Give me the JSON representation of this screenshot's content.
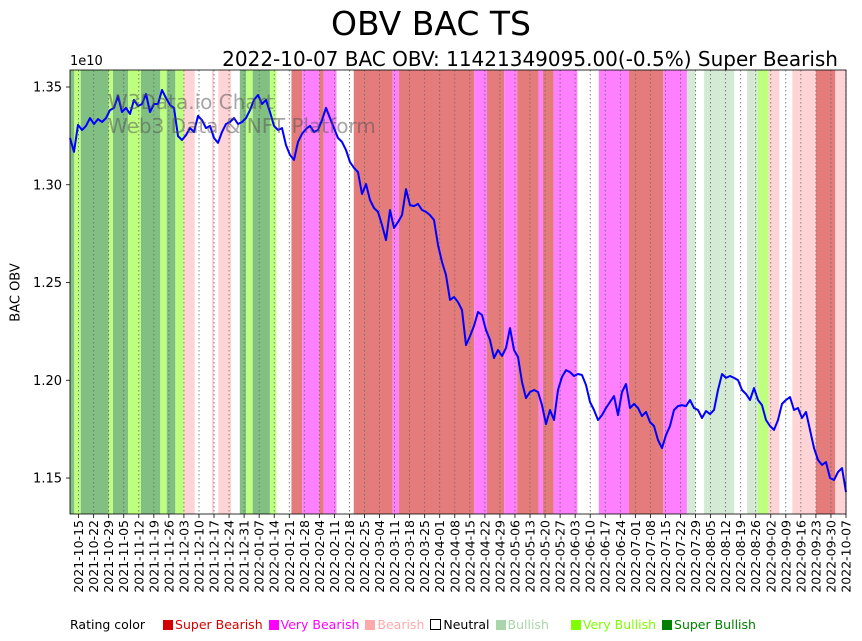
{
  "chart_data": {
    "type": "line",
    "title": "OBV BAC TS",
    "subtitle": "2022-10-07 BAC OBV: 11421349095.00(-0.5%) Super Bearish",
    "ylabel": "BAC OBV",
    "xlabel": "",
    "y_offset_label": "1e10",
    "ylim": [
      1.1316,
      1.3587
    ],
    "yticks": [
      "1.15",
      "1.20",
      "1.25",
      "1.30",
      "1.35"
    ],
    "xlim": [
      "2021-10-11",
      "2022-10-07"
    ],
    "xticks": [
      "2021-10-15",
      "2021-10-22",
      "2021-10-29",
      "2021-11-05",
      "2021-11-12",
      "2021-11-19",
      "2021-11-26",
      "2021-12-03",
      "2021-12-10",
      "2021-12-17",
      "2021-12-24",
      "2021-12-31",
      "2022-01-07",
      "2022-01-14",
      "2022-01-21",
      "2022-01-28",
      "2022-02-04",
      "2022-02-11",
      "2022-02-18",
      "2022-02-25",
      "2022-03-04",
      "2022-03-11",
      "2022-03-18",
      "2022-03-25",
      "2022-04-01",
      "2022-04-08",
      "2022-04-15",
      "2022-04-22",
      "2022-04-29",
      "2022-05-06",
      "2022-05-13",
      "2022-05-20",
      "2022-05-27",
      "2022-06-03",
      "2022-06-10",
      "2022-06-17",
      "2022-06-24",
      "2022-07-01",
      "2022-07-08",
      "2022-07-15",
      "2022-07-22",
      "2022-07-29",
      "2022-08-05",
      "2022-08-12",
      "2022-08-19",
      "2022-08-26",
      "2022-09-02",
      "2022-09-09",
      "2022-09-16",
      "2022-09-23",
      "2022-09-30",
      "2022-10-07"
    ],
    "grid": "x dotted",
    "series": [
      {
        "name": "BAC OBV",
        "color": "#0000ff",
        "x_start": "2021-10-11",
        "x_end": "2022-10-07",
        "values": [
          1.3239,
          1.3168,
          1.3306,
          1.328,
          1.3301,
          1.3341,
          1.3311,
          1.3336,
          1.3321,
          1.3341,
          1.3382,
          1.3393,
          1.3454,
          1.3372,
          1.3393,
          1.3362,
          1.3434,
          1.3403,
          1.3413,
          1.3464,
          1.3372,
          1.3413,
          1.3413,
          1.3485,
          1.3444,
          1.3408,
          1.3393,
          1.3249,
          1.3229,
          1.3254,
          1.329,
          1.327,
          1.3352,
          1.3331,
          1.329,
          1.3301,
          1.3239,
          1.3214,
          1.327,
          1.3311,
          1.3321,
          1.3341,
          1.3311,
          1.3321,
          1.3341,
          1.3382,
          1.3434,
          1.3459,
          1.3413,
          1.3434,
          1.3372,
          1.3301,
          1.328,
          1.329,
          1.3203,
          1.3152,
          1.3127,
          1.3219,
          1.326,
          1.3285,
          1.3301,
          1.327,
          1.328,
          1.3331,
          1.3393,
          1.3341,
          1.329,
          1.3239,
          1.3219,
          1.3178,
          1.3116,
          1.3086,
          1.3065,
          1.2953,
          1.3004,
          1.2922,
          1.2881,
          1.2861,
          1.2794,
          1.2717,
          1.2871,
          1.2779,
          1.2809,
          1.2845,
          1.2978,
          1.2896,
          1.2891,
          1.2902,
          1.2871,
          1.2861,
          1.2845,
          1.282,
          1.2692,
          1.2605,
          1.2538,
          1.2411,
          1.2426,
          1.24,
          1.2359,
          1.218,
          1.2226,
          1.2278,
          1.2349,
          1.2334,
          1.2257,
          1.2206,
          1.2114,
          1.2155,
          1.2124,
          1.2165,
          1.2267,
          1.2155,
          1.2119,
          1.1991,
          1.1909,
          1.194,
          1.195,
          1.194,
          1.1873,
          1.1776,
          1.1848,
          1.1797,
          1.195,
          1.2017,
          1.2052,
          1.2042,
          1.2022,
          1.2032,
          1.2027,
          1.1976,
          1.1889,
          1.1848,
          1.1797,
          1.1822,
          1.1858,
          1.1889,
          1.1919,
          1.1822,
          1.194,
          1.1981,
          1.1858,
          1.1879,
          1.1858,
          1.1817,
          1.1838,
          1.1786,
          1.1766,
          1.1694,
          1.1653,
          1.172,
          1.1766,
          1.1848,
          1.1868,
          1.1873,
          1.1868,
          1.1899,
          1.1858,
          1.1848,
          1.1807,
          1.1843,
          1.1827,
          1.1848,
          1.195,
          1.2032,
          1.2012,
          1.2022,
          1.2012,
          1.2001,
          1.195,
          1.193,
          1.1899,
          1.196,
          1.1899,
          1.1873,
          1.1797,
          1.1766,
          1.1746,
          1.1797,
          1.1879,
          1.1899,
          1.1914,
          1.1848,
          1.1858,
          1.1807,
          1.1838,
          1.1746,
          1.1653,
          1.1592,
          1.1567,
          1.1582,
          1.15,
          1.149,
          1.1531,
          1.1551,
          1.1428
        ]
      }
    ],
    "rating_bands": [
      [
        "2021-10-11",
        "2021-10-13",
        "super_bullish"
      ],
      [
        "2021-10-13",
        "2021-10-16",
        "very_bullish"
      ],
      [
        "2021-10-16",
        "2021-10-29",
        "super_bullish"
      ],
      [
        "2021-10-29",
        "2021-10-31",
        "very_bullish"
      ],
      [
        "2021-10-31",
        "2021-11-07",
        "super_bullish"
      ],
      [
        "2021-11-07",
        "2021-11-13",
        "very_bullish"
      ],
      [
        "2021-11-13",
        "2021-11-22",
        "super_bullish"
      ],
      [
        "2021-11-22",
        "2021-11-25",
        "very_bullish"
      ],
      [
        "2021-11-25",
        "2021-11-29",
        "super_bullish"
      ],
      [
        "2021-11-29",
        "2021-12-03",
        "very_bullish"
      ],
      [
        "2021-12-03",
        "2021-12-08",
        "bearish"
      ],
      [
        "2021-12-16",
        "2021-12-17",
        "bearish"
      ],
      [
        "2021-12-19",
        "2021-12-25",
        "bearish"
      ],
      [
        "2021-12-29",
        "2022-01-01",
        "super_bullish"
      ],
      [
        "2022-01-01",
        "2022-01-04",
        "very_bullish"
      ],
      [
        "2022-01-04",
        "2022-01-12",
        "super_bullish"
      ],
      [
        "2022-01-12",
        "2022-01-15",
        "very_bullish"
      ],
      [
        "2022-01-22",
        "2022-01-27",
        "super_bearish"
      ],
      [
        "2022-01-27",
        "2022-02-04",
        "very_bearish"
      ],
      [
        "2022-02-04",
        "2022-02-06",
        "super_bearish"
      ],
      [
        "2022-02-06",
        "2022-02-12",
        "very_bearish"
      ],
      [
        "2022-02-20",
        "2022-03-10",
        "super_bearish"
      ],
      [
        "2022-03-10",
        "2022-03-13",
        "very_bearish"
      ],
      [
        "2022-03-13",
        "2022-04-17",
        "super_bearish"
      ],
      [
        "2022-04-17",
        "2022-04-23",
        "very_bearish"
      ],
      [
        "2022-04-23",
        "2022-05-01",
        "super_bearish"
      ],
      [
        "2022-05-01",
        "2022-05-07",
        "very_bearish"
      ],
      [
        "2022-05-07",
        "2022-05-17",
        "super_bearish"
      ],
      [
        "2022-05-17",
        "2022-05-19",
        "very_bearish"
      ],
      [
        "2022-05-19",
        "2022-05-24",
        "super_bearish"
      ],
      [
        "2022-05-24",
        "2022-06-04",
        "very_bearish"
      ],
      [
        "2022-06-14",
        "2022-06-28",
        "very_bearish"
      ],
      [
        "2022-06-28",
        "2022-07-14",
        "super_bearish"
      ],
      [
        "2022-07-14",
        "2022-07-25",
        "very_bearish"
      ],
      [
        "2022-07-25",
        "2022-07-29",
        "bullish"
      ],
      [
        "2022-08-02",
        "2022-08-16",
        "bullish"
      ],
      [
        "2022-08-22",
        "2022-08-27",
        "bullish"
      ],
      [
        "2022-08-27",
        "2022-09-01",
        "very_bullish"
      ],
      [
        "2022-09-01",
        "2022-09-06",
        "bearish"
      ],
      [
        "2022-09-12",
        "2022-09-23",
        "bearish"
      ],
      [
        "2022-09-23",
        "2022-10-02",
        "super_bearish"
      ],
      [
        "2022-10-02",
        "2022-10-07",
        "bearish"
      ]
    ],
    "band_colors": {
      "super_bearish": "#e47c7b",
      "very_bearish": "#ff80ff",
      "bearish": "#ffd4d6",
      "bullish": "#d4ead4",
      "very_bullish": "#bfff80",
      "super_bullish": "#82bf82"
    },
    "legend": {
      "title": "Rating color",
      "placement": "bottom",
      "items": [
        {
          "label": "Super Bearish",
          "color": "#d40000"
        },
        {
          "label": "Very Bearish",
          "color": "#ff00ff"
        },
        {
          "label": "Bearish",
          "color": "#ffaaaa"
        },
        {
          "label": "Neutral",
          "color": "#000000",
          "hollow": true
        },
        {
          "label": "Bullish",
          "color": "#aad5aa"
        },
        {
          "label": "Very Bullish",
          "color": "#7fff00"
        },
        {
          "label": "Super Bullish",
          "color": "#008000"
        }
      ]
    },
    "watermark": [
      "W3Data.io Chart",
      "Web3 Data & NFT Platform"
    ]
  }
}
